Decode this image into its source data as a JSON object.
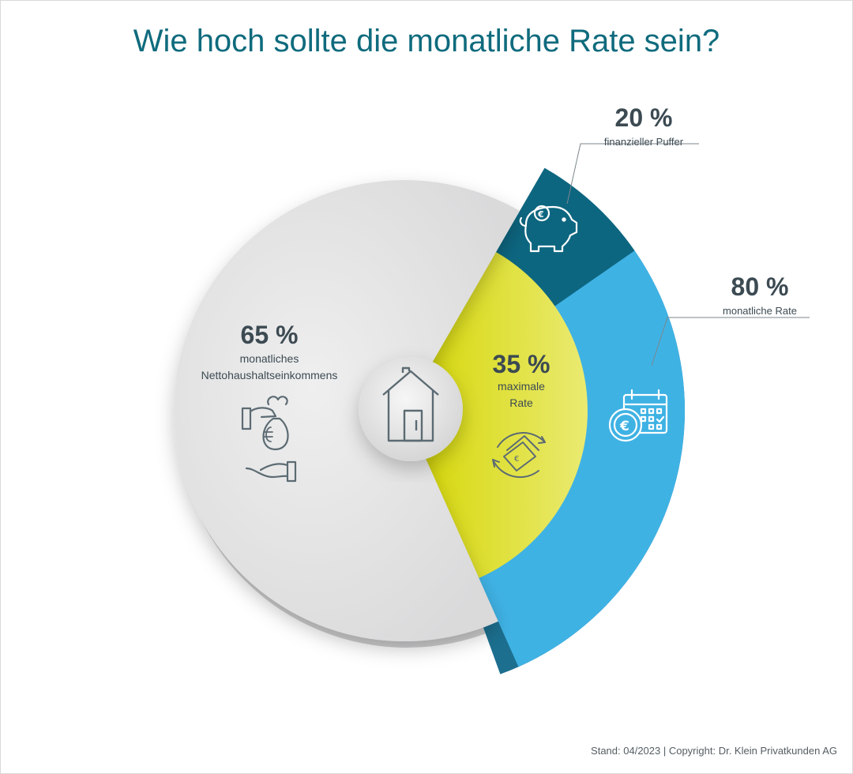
{
  "title": "Wie hoch sollte die monatliche Rate sein?",
  "footer": "Stand: 04/2023 | Copyright: Dr. Klein Privatkunden AG",
  "chart_data": {
    "type": "pie",
    "title": "Wie hoch sollte die monatliche Rate sein?",
    "inner": [
      {
        "name": "monatliches Nettohaushaltseinkommens",
        "pct_label": "65 %",
        "value": 65,
        "color": "#e4e4e5"
      },
      {
        "name": "maximale Rate",
        "pct_label": "35 %",
        "value": 35,
        "color": "#dfdf3a"
      }
    ],
    "outer": [
      {
        "name": "finanzieller Puffer",
        "pct_label": "20 %",
        "value": 20,
        "color": "#0d6680"
      },
      {
        "name": "monatliche Rate",
        "pct_label": "80 %",
        "value": 80,
        "color": "#3fb2e4"
      }
    ],
    "icons": {
      "center": "house-icon",
      "income": "money-bag-hand-icon",
      "rate": "cash-cycle-icon",
      "buffer": "piggy-bank-icon",
      "monthly": "calendar-euro-icon"
    }
  }
}
